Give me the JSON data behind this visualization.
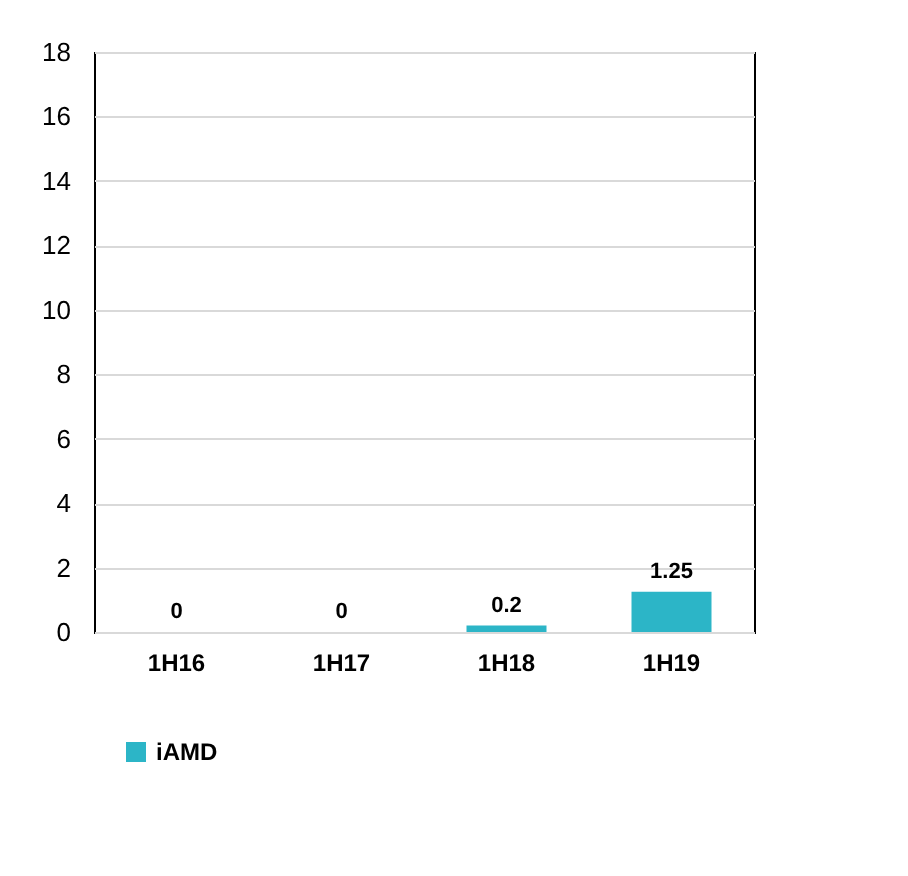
{
  "chart_data": {
    "type": "bar",
    "categories": [
      "1H16",
      "1H17",
      "1H18",
      "1H19"
    ],
    "series": [
      {
        "name": "iAMD",
        "color": "#2cb5c7",
        "values": [
          0,
          0,
          0.2,
          1.25
        ]
      }
    ],
    "ylim": [
      0,
      18
    ],
    "yticks": [
      0,
      2,
      4,
      6,
      8,
      10,
      12,
      14,
      16,
      18
    ],
    "grid": "y",
    "legend": "bottom",
    "data_labels": true
  }
}
